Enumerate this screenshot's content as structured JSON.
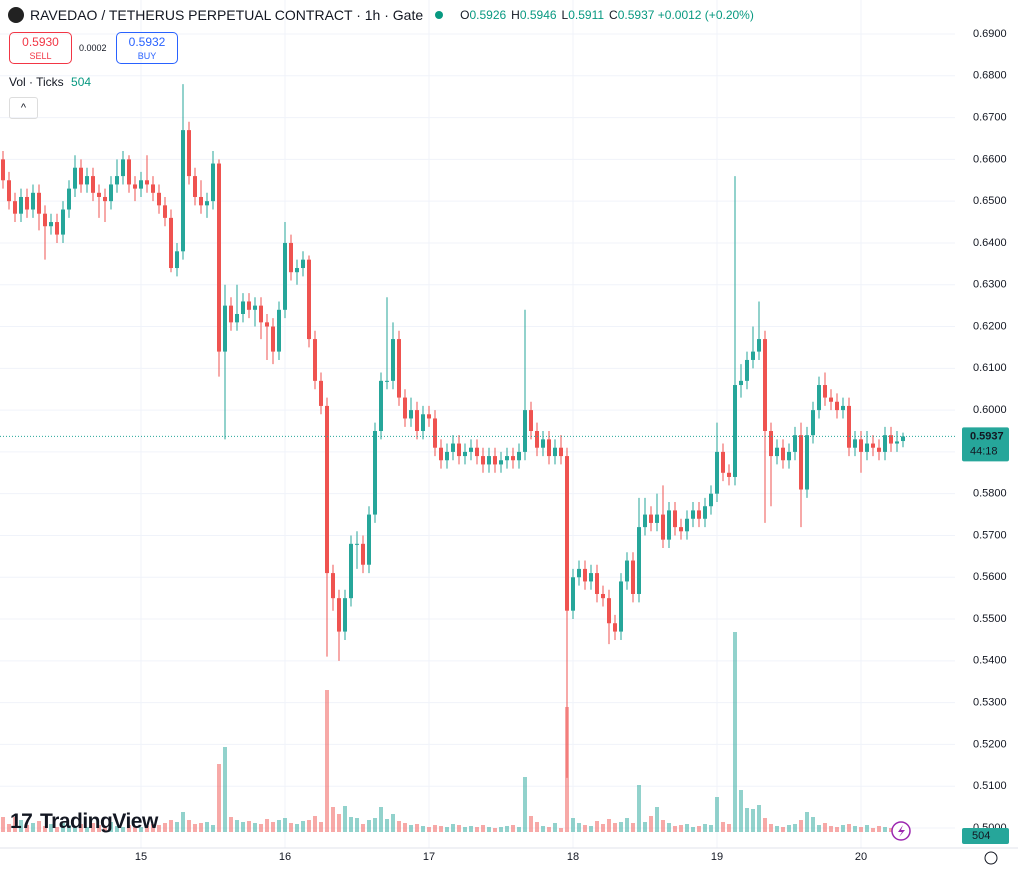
{
  "header": {
    "symbol": "RAVEDAO / TETHERUS PERPETUAL CONTRACT · 1h · Gate",
    "o": "O",
    "h": "H",
    "l": "L",
    "c": "C",
    "change": "+0.0012 (+0.20%)",
    "sell": "0.5930",
    "sell_label": "SELL",
    "spread": "0.0002",
    "buy": "0.5932",
    "buy_label": "BUY",
    "volume_label": "Vol · Ticks"
  },
  "branding": "TradingView",
  "chart_data": {
    "type": "candlestick",
    "up_color": "#26a69a",
    "down_color": "#ef5350",
    "grid": true,
    "ylim": [
      0.4995,
      0.6982
    ],
    "yticks": [
      {
        "value": 0.5,
        "label": "0.5000"
      },
      {
        "value": 0.51,
        "label": "0.5100"
      },
      {
        "value": 0.52,
        "label": "0.5200"
      },
      {
        "value": 0.53,
        "label": "0.5300"
      },
      {
        "value": 0.54,
        "label": "0.5400"
      },
      {
        "value": 0.55,
        "label": "0.5500"
      },
      {
        "value": 0.56,
        "label": "0.5600"
      },
      {
        "value": 0.57,
        "label": "0.5700"
      },
      {
        "value": 0.58,
        "label": "0.5800"
      },
      {
        "value": 0.59,
        "label": "0.5900"
      },
      {
        "value": 0.6,
        "label": "0.6000"
      },
      {
        "value": 0.61,
        "label": "0.6100"
      },
      {
        "value": 0.62,
        "label": "0.6200"
      },
      {
        "value": 0.63,
        "label": "0.6300"
      },
      {
        "value": 0.64,
        "label": "0.6400"
      },
      {
        "value": 0.65,
        "label": "0.6500"
      },
      {
        "value": 0.66,
        "label": "0.6600"
      },
      {
        "value": 0.67,
        "label": "0.6700"
      },
      {
        "value": 0.68,
        "label": "0.6800"
      },
      {
        "value": 0.69,
        "label": "0.6900"
      }
    ],
    "countdown": "44:18",
    "categories": [
      null,
      null,
      null,
      null,
      null,
      null,
      null,
      null,
      null,
      null,
      null,
      null,
      null,
      null,
      null,
      null,
      null,
      null,
      null,
      null,
      null,
      null,
      null,
      "15",
      null,
      null,
      null,
      null,
      null,
      null,
      null,
      null,
      null,
      null,
      null,
      null,
      null,
      null,
      null,
      null,
      null,
      null,
      null,
      null,
      null,
      null,
      null,
      "16",
      null,
      null,
      null,
      null,
      null,
      null,
      null,
      null,
      null,
      null,
      null,
      null,
      null,
      null,
      null,
      null,
      null,
      null,
      null,
      null,
      null,
      null,
      null,
      "17",
      null,
      null,
      null,
      null,
      null,
      null,
      null,
      null,
      null,
      null,
      null,
      null,
      null,
      null,
      null,
      null,
      null,
      null,
      null,
      null,
      null,
      null,
      null,
      "18",
      null,
      null,
      null,
      null,
      null,
      null,
      null,
      null,
      null,
      null,
      null,
      null,
      null,
      null,
      null,
      null,
      null,
      null,
      null,
      null,
      null,
      null,
      null,
      "19",
      null,
      null,
      null,
      null,
      null,
      null,
      null,
      null,
      null,
      null,
      null,
      null,
      null,
      null,
      null,
      null,
      null,
      null,
      null,
      null,
      null,
      null,
      null,
      "20",
      null,
      null,
      null,
      null,
      null,
      null,
      null
    ],
    "candles": [
      [
        0.66,
        0.662,
        0.653,
        0.655
      ],
      [
        0.655,
        0.657,
        0.648,
        0.65
      ],
      [
        0.65,
        0.652,
        0.645,
        0.647
      ],
      [
        0.647,
        0.653,
        0.645,
        0.651
      ],
      [
        0.651,
        0.653,
        0.646,
        0.648
      ],
      [
        0.648,
        0.654,
        0.646,
        0.652
      ],
      [
        0.652,
        0.654,
        0.643,
        0.647
      ],
      [
        0.647,
        0.649,
        0.636,
        0.644
      ],
      [
        0.644,
        0.647,
        0.642,
        0.645
      ],
      [
        0.645,
        0.647,
        0.64,
        0.642
      ],
      [
        0.642,
        0.65,
        0.64,
        0.648
      ],
      [
        0.648,
        0.655,
        0.646,
        0.653
      ],
      [
        0.653,
        0.661,
        0.651,
        0.658
      ],
      [
        0.658,
        0.66,
        0.652,
        0.654
      ],
      [
        0.654,
        0.658,
        0.652,
        0.656
      ],
      [
        0.656,
        0.658,
        0.65,
        0.652
      ],
      [
        0.652,
        0.654,
        0.646,
        0.651
      ],
      [
        0.651,
        0.653,
        0.645,
        0.65
      ],
      [
        0.65,
        0.656,
        0.648,
        0.654
      ],
      [
        0.654,
        0.66,
        0.652,
        0.656
      ],
      [
        0.656,
        0.662,
        0.654,
        0.66
      ],
      [
        0.66,
        0.661,
        0.652,
        0.654
      ],
      [
        0.654,
        0.656,
        0.65,
        0.653
      ],
      [
        0.653,
        0.657,
        0.651,
        0.655
      ],
      [
        0.655,
        0.661,
        0.652,
        0.654
      ],
      [
        0.654,
        0.656,
        0.65,
        0.652
      ],
      [
        0.652,
        0.654,
        0.647,
        0.649
      ],
      [
        0.649,
        0.651,
        0.644,
        0.646
      ],
      [
        0.646,
        0.648,
        0.633,
        0.634
      ],
      [
        0.634,
        0.64,
        0.632,
        0.638
      ],
      [
        0.638,
        0.678,
        0.636,
        0.667
      ],
      [
        0.667,
        0.669,
        0.654,
        0.656
      ],
      [
        0.656,
        0.658,
        0.649,
        0.651
      ],
      [
        0.651,
        0.655,
        0.647,
        0.649
      ],
      [
        0.649,
        0.652,
        0.646,
        0.65
      ],
      [
        0.65,
        0.662,
        0.648,
        0.659
      ],
      [
        0.659,
        0.66,
        0.608,
        0.614
      ],
      [
        0.614,
        0.63,
        0.593,
        0.625
      ],
      [
        0.625,
        0.627,
        0.619,
        0.621
      ],
      [
        0.621,
        0.63,
        0.619,
        0.623
      ],
      [
        0.623,
        0.628,
        0.621,
        0.626
      ],
      [
        0.626,
        0.628,
        0.622,
        0.624
      ],
      [
        0.624,
        0.627,
        0.62,
        0.625
      ],
      [
        0.625,
        0.627,
        0.617,
        0.621
      ],
      [
        0.621,
        0.623,
        0.612,
        0.62
      ],
      [
        0.62,
        0.622,
        0.611,
        0.614
      ],
      [
        0.614,
        0.626,
        0.612,
        0.624
      ],
      [
        0.624,
        0.645,
        0.622,
        0.64
      ],
      [
        0.64,
        0.642,
        0.631,
        0.633
      ],
      [
        0.633,
        0.636,
        0.63,
        0.634
      ],
      [
        0.634,
        0.638,
        0.632,
        0.636
      ],
      [
        0.636,
        0.637,
        0.615,
        0.617
      ],
      [
        0.617,
        0.619,
        0.605,
        0.607
      ],
      [
        0.607,
        0.609,
        0.599,
        0.601
      ],
      [
        0.601,
        0.603,
        0.541,
        0.561
      ],
      [
        0.561,
        0.563,
        0.552,
        0.555
      ],
      [
        0.555,
        0.557,
        0.54,
        0.547
      ],
      [
        0.547,
        0.557,
        0.545,
        0.555
      ],
      [
        0.555,
        0.57,
        0.553,
        0.568
      ],
      [
        0.568,
        0.571,
        0.562,
        0.568
      ],
      [
        0.568,
        0.57,
        0.561,
        0.563
      ],
      [
        0.563,
        0.577,
        0.561,
        0.575
      ],
      [
        0.575,
        0.597,
        0.573,
        0.595
      ],
      [
        0.595,
        0.609,
        0.593,
        0.607
      ],
      [
        0.607,
        0.627,
        0.605,
        0.607
      ],
      [
        0.607,
        0.621,
        0.605,
        0.617
      ],
      [
        0.617,
        0.619,
        0.601,
        0.603
      ],
      [
        0.603,
        0.605,
        0.596,
        0.598
      ],
      [
        0.598,
        0.603,
        0.596,
        0.6
      ],
      [
        0.6,
        0.602,
        0.593,
        0.595
      ],
      [
        0.595,
        0.601,
        0.593,
        0.599
      ],
      [
        0.599,
        0.601,
        0.596,
        0.598
      ],
      [
        0.598,
        0.6,
        0.589,
        0.591
      ],
      [
        0.591,
        0.593,
        0.586,
        0.588
      ],
      [
        0.588,
        0.592,
        0.586,
        0.59
      ],
      [
        0.59,
        0.594,
        0.588,
        0.592
      ],
      [
        0.592,
        0.594,
        0.587,
        0.589
      ],
      [
        0.589,
        0.592,
        0.587,
        0.59
      ],
      [
        0.59,
        0.593,
        0.588,
        0.591
      ],
      [
        0.591,
        0.593,
        0.587,
        0.589
      ],
      [
        0.589,
        0.591,
        0.585,
        0.587
      ],
      [
        0.587,
        0.591,
        0.585,
        0.589
      ],
      [
        0.589,
        0.591,
        0.585,
        0.587
      ],
      [
        0.587,
        0.59,
        0.585,
        0.588
      ],
      [
        0.588,
        0.591,
        0.586,
        0.589
      ],
      [
        0.589,
        0.591,
        0.586,
        0.588
      ],
      [
        0.588,
        0.592,
        0.586,
        0.59
      ],
      [
        0.59,
        0.624,
        0.588,
        0.6
      ],
      [
        0.6,
        0.602,
        0.593,
        0.595
      ],
      [
        0.595,
        0.597,
        0.589,
        0.591
      ],
      [
        0.591,
        0.595,
        0.589,
        0.593
      ],
      [
        0.593,
        0.595,
        0.587,
        0.589
      ],
      [
        0.589,
        0.593,
        0.587,
        0.591
      ],
      [
        0.591,
        0.594,
        0.587,
        0.589
      ],
      [
        0.589,
        0.591,
        0.512,
        0.552
      ],
      [
        0.552,
        0.562,
        0.55,
        0.56
      ],
      [
        0.56,
        0.564,
        0.558,
        0.562
      ],
      [
        0.562,
        0.564,
        0.557,
        0.559
      ],
      [
        0.559,
        0.563,
        0.557,
        0.561
      ],
      [
        0.561,
        0.563,
        0.554,
        0.556
      ],
      [
        0.556,
        0.558,
        0.553,
        0.555
      ],
      [
        0.555,
        0.557,
        0.544,
        0.549
      ],
      [
        0.549,
        0.551,
        0.545,
        0.547
      ],
      [
        0.547,
        0.561,
        0.545,
        0.559
      ],
      [
        0.559,
        0.566,
        0.557,
        0.564
      ],
      [
        0.564,
        0.566,
        0.554,
        0.556
      ],
      [
        0.556,
        0.579,
        0.554,
        0.572
      ],
      [
        0.572,
        0.579,
        0.57,
        0.575
      ],
      [
        0.575,
        0.577,
        0.571,
        0.573
      ],
      [
        0.573,
        0.58,
        0.571,
        0.575
      ],
      [
        0.575,
        0.582,
        0.567,
        0.569
      ],
      [
        0.569,
        0.578,
        0.567,
        0.576
      ],
      [
        0.576,
        0.578,
        0.57,
        0.572
      ],
      [
        0.572,
        0.574,
        0.569,
        0.571
      ],
      [
        0.571,
        0.576,
        0.569,
        0.574
      ],
      [
        0.574,
        0.578,
        0.572,
        0.576
      ],
      [
        0.576,
        0.578,
        0.572,
        0.574
      ],
      [
        0.574,
        0.579,
        0.572,
        0.577
      ],
      [
        0.577,
        0.582,
        0.575,
        0.58
      ],
      [
        0.58,
        0.597,
        0.578,
        0.59
      ],
      [
        0.59,
        0.592,
        0.583,
        0.585
      ],
      [
        0.585,
        0.587,
        0.582,
        0.584
      ],
      [
        0.584,
        0.656,
        0.582,
        0.606
      ],
      [
        0.606,
        0.611,
        0.603,
        0.607
      ],
      [
        0.607,
        0.614,
        0.605,
        0.612
      ],
      [
        0.612,
        0.62,
        0.61,
        0.614
      ],
      [
        0.614,
        0.626,
        0.612,
        0.617
      ],
      [
        0.617,
        0.619,
        0.573,
        0.595
      ],
      [
        0.595,
        0.597,
        0.577,
        0.589
      ],
      [
        0.589,
        0.593,
        0.587,
        0.591
      ],
      [
        0.591,
        0.593,
        0.586,
        0.588
      ],
      [
        0.588,
        0.592,
        0.586,
        0.59
      ],
      [
        0.59,
        0.596,
        0.588,
        0.594
      ],
      [
        0.594,
        0.597,
        0.572,
        0.581
      ],
      [
        0.581,
        0.596,
        0.579,
        0.594
      ],
      [
        0.594,
        0.602,
        0.592,
        0.6
      ],
      [
        0.6,
        0.608,
        0.598,
        0.606
      ],
      [
        0.606,
        0.609,
        0.601,
        0.603
      ],
      [
        0.603,
        0.605,
        0.6,
        0.602
      ],
      [
        0.602,
        0.604,
        0.598,
        0.6
      ],
      [
        0.6,
        0.603,
        0.598,
        0.601
      ],
      [
        0.601,
        0.603,
        0.589,
        0.591
      ],
      [
        0.591,
        0.595,
        0.589,
        0.593
      ],
      [
        0.593,
        0.595,
        0.585,
        0.59
      ],
      [
        0.59,
        0.595,
        0.588,
        0.592
      ],
      [
        0.592,
        0.594,
        0.589,
        0.591
      ],
      [
        0.591,
        0.593,
        0.588,
        0.59
      ],
      [
        0.59,
        0.596,
        0.588,
        0.594
      ],
      [
        0.594,
        0.596,
        0.59,
        0.592
      ],
      [
        0.592,
        0.595,
        0.59,
        0.5925
      ],
      [
        0.5926,
        0.5946,
        0.5911,
        0.5937
      ]
    ],
    "volumes": [
      1500,
      800,
      1500,
      1200,
      700,
      900,
      1100,
      600,
      800,
      500,
      900,
      700,
      600,
      800,
      500,
      900,
      700,
      600,
      1000,
      600,
      500,
      700,
      600,
      500,
      600,
      800,
      700,
      900,
      1200,
      1000,
      2000,
      1200,
      800,
      900,
      1000,
      700,
      6800,
      8500,
      1500,
      1200,
      1000,
      1100,
      900,
      800,
      1300,
      1000,
      1200,
      1400,
      900,
      800,
      1100,
      1200,
      1600,
      1000,
      14200,
      2500,
      1800,
      2600,
      1500,
      1400,
      800,
      1200,
      1400,
      2500,
      1300,
      1800,
      1100,
      900,
      700,
      800,
      600,
      500,
      700,
      600,
      500,
      800,
      700,
      500,
      600,
      500,
      700,
      500,
      400,
      500,
      600,
      700,
      500,
      5500,
      1600,
      1000,
      600,
      500,
      900,
      400,
      12500,
      1400,
      900,
      700,
      600,
      1100,
      800,
      1300,
      900,
      1000,
      1400,
      900,
      4700,
      1000,
      1600,
      2500,
      1200,
      900,
      600,
      700,
      800,
      500,
      600,
      800,
      700,
      3500,
      1000,
      800,
      20000,
      4200,
      2400,
      2300,
      2700,
      1400,
      800,
      600,
      500,
      700,
      800,
      1200,
      2000,
      1500,
      700,
      900,
      600,
      500,
      700,
      800,
      600,
      500,
      700,
      400,
      600,
      500,
      400,
      600,
      504
    ]
  }
}
